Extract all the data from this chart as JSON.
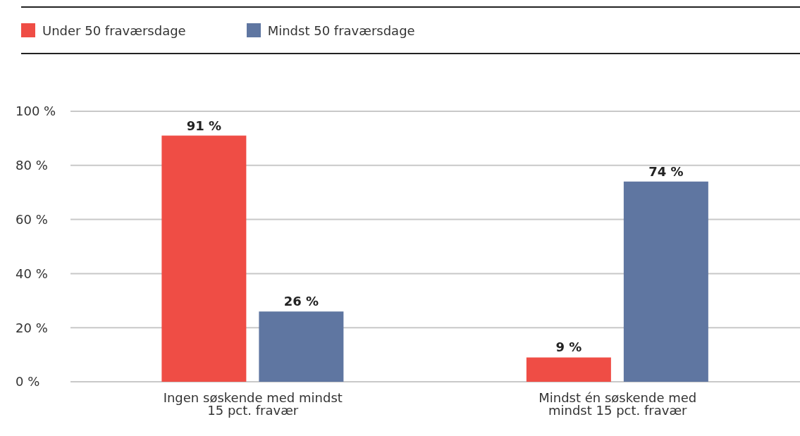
{
  "chart_data": {
    "type": "bar",
    "categories": [
      "Ingen søskende med mindst 15 pct. fravær",
      "Mindst én søskende med mindst 15 pct. fravær"
    ],
    "series": [
      {
        "name": "Under 50 fraværsdage",
        "color": "#ef4d45",
        "values": [
          91,
          9
        ],
        "value_labels": [
          "91 %",
          "9 %"
        ]
      },
      {
        "name": "Mindst 50 fraværsdage",
        "color": "#5f76a1",
        "values": [
          26,
          74
        ],
        "value_labels": [
          "26 %",
          "74 %"
        ]
      }
    ],
    "ylim": [
      0,
      100
    ],
    "yticks": [
      {
        "value": 0,
        "label": "0 %"
      },
      {
        "value": 20,
        "label": "20 %"
      },
      {
        "value": 40,
        "label": "40 %"
      },
      {
        "value": 60,
        "label": "60 %"
      },
      {
        "value": 80,
        "label": "80 %"
      },
      {
        "value": 100,
        "label": "100 %"
      }
    ],
    "grid": "y",
    "legend": "top left"
  }
}
